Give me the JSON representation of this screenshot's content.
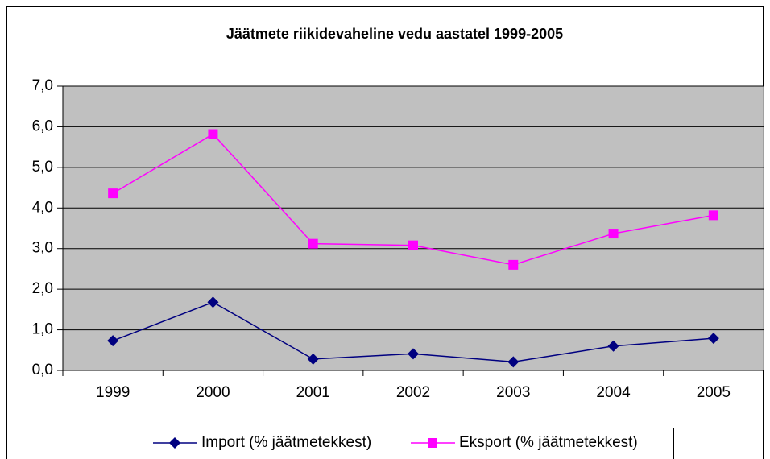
{
  "chart_data": {
    "type": "line",
    "title": "Jäätmete riikidevaheline vedu aastatel 1999-2005",
    "categories": [
      "1999",
      "2000",
      "2001",
      "2002",
      "2003",
      "2004",
      "2005"
    ],
    "series": [
      {
        "name": "Import (% jäätmetekkest)",
        "color": "#000080",
        "marker": "diamond",
        "values": [
          0.73,
          1.68,
          0.28,
          0.41,
          0.21,
          0.6,
          0.79
        ]
      },
      {
        "name": "Eksport (% jäätmetekkest)",
        "color": "#ff00ff",
        "marker": "square",
        "values": [
          4.36,
          5.82,
          3.12,
          3.08,
          2.6,
          3.37,
          3.82
        ]
      }
    ],
    "ylim": [
      0,
      7
    ],
    "yticks": [
      {
        "value": 0,
        "label": "0,0"
      },
      {
        "value": 1,
        "label": "1,0"
      },
      {
        "value": 2,
        "label": "2,0"
      },
      {
        "value": 3,
        "label": "3,0"
      },
      {
        "value": 4,
        "label": "4,0"
      },
      {
        "value": 5,
        "label": "5,0"
      },
      {
        "value": 6,
        "label": "6,0"
      },
      {
        "value": 7,
        "label": "7,0"
      }
    ],
    "grid": true,
    "plot_background": "#c0c0c0",
    "legend": "bottom"
  }
}
